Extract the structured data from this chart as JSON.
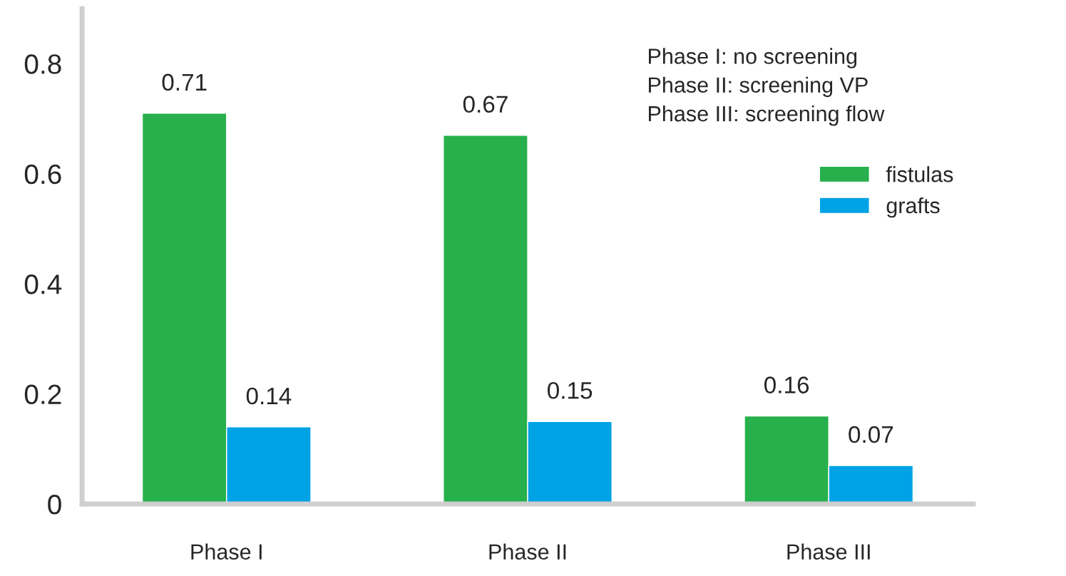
{
  "chart_data": {
    "type": "bar",
    "categories": [
      "Phase I",
      "Phase II",
      "Phase III"
    ],
    "series": [
      {
        "name": "fistulas",
        "color": "#27b04b",
        "values": [
          0.71,
          0.67,
          0.16
        ]
      },
      {
        "name": "grafts",
        "color": "#00a2e6",
        "values": [
          0.14,
          0.15,
          0.07
        ]
      }
    ],
    "ylim": [
      0,
      0.9
    ],
    "yticks": [
      0,
      0.2,
      0.4,
      0.6,
      0.8
    ],
    "data_labels": true,
    "grid": false,
    "legend": "right",
    "annotations": [
      "Phase I: no screening",
      "Phase II: screening VP",
      "Phase III: screening flow"
    ]
  }
}
